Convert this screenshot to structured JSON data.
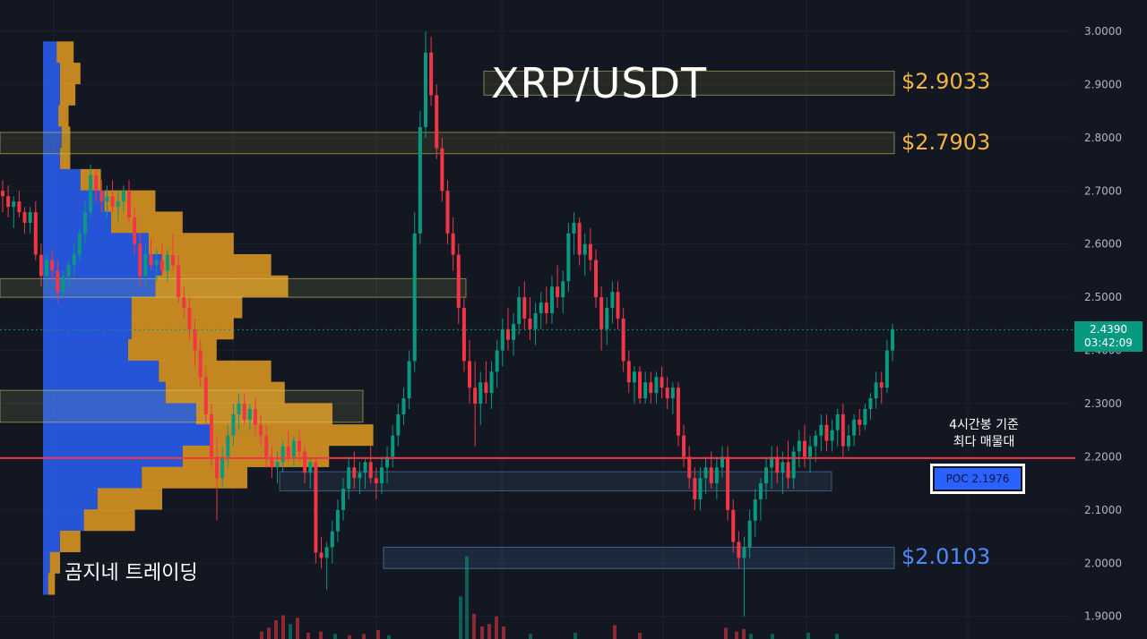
{
  "chart_data": {
    "type": "candlestick",
    "title": "XRP/USDT",
    "watermark": "곰지네 트레이딩",
    "y_axis": {
      "ticks": [
        "3.0000",
        "2.9000",
        "2.8000",
        "2.7000",
        "2.6000",
        "2.5000",
        "2.4000",
        "2.3000",
        "2.2000",
        "2.1000",
        "2.0000",
        "1.9000"
      ],
      "ylim": [
        1.86,
        3.04
      ],
      "side": "right"
    },
    "last_price": {
      "value": "2.4390",
      "countdown": "03:42:09"
    },
    "levels": [
      {
        "label": "$2.9033",
        "value": 2.9033,
        "zone": [
          2.88,
          2.925
        ],
        "color": "#f5b43c"
      },
      {
        "label": "$2.7903",
        "value": 2.7903,
        "zone": [
          2.77,
          2.81
        ],
        "color": "#f5b43c"
      },
      {
        "label": "$2.0103",
        "value": 2.0103,
        "zone": [
          1.99,
          2.03
        ],
        "color": "#4a8cff"
      }
    ],
    "other_zones": [
      {
        "range": [
          2.5,
          2.535
        ],
        "color": "#d7d26a"
      },
      {
        "range": [
          2.265,
          2.325
        ],
        "color": "#d7d26a"
      },
      {
        "range": [
          2.136,
          2.172
        ],
        "color": "#5a8fb5"
      }
    ],
    "poc": {
      "value": 2.1976,
      "label": "POC  2.1976",
      "note_line1": "4시간봉 기준",
      "note_line2": "최다 매물대",
      "line_color": "#f23645"
    },
    "candles_ohlc": [
      [
        2.7,
        2.72,
        2.66,
        2.69
      ],
      [
        2.69,
        2.71,
        2.65,
        2.67
      ],
      [
        2.67,
        2.69,
        2.63,
        2.68
      ],
      [
        2.68,
        2.7,
        2.65,
        2.66
      ],
      [
        2.66,
        2.67,
        2.62,
        2.64
      ],
      [
        2.64,
        2.67,
        2.62,
        2.66
      ],
      [
        2.66,
        2.68,
        2.57,
        2.58
      ],
      [
        2.58,
        2.6,
        2.52,
        2.54
      ],
      [
        2.54,
        2.58,
        2.52,
        2.57
      ],
      [
        2.57,
        2.59,
        2.53,
        2.55
      ],
      [
        2.55,
        2.57,
        2.49,
        2.51
      ],
      [
        2.51,
        2.55,
        2.5,
        2.54
      ],
      [
        2.54,
        2.57,
        2.52,
        2.56
      ],
      [
        2.56,
        2.6,
        2.54,
        2.58
      ],
      [
        2.58,
        2.63,
        2.57,
        2.62
      ],
      [
        2.62,
        2.68,
        2.6,
        2.66
      ],
      [
        2.66,
        2.75,
        2.65,
        2.73
      ],
      [
        2.73,
        2.74,
        2.68,
        2.7
      ],
      [
        2.7,
        2.72,
        2.66,
        2.68
      ],
      [
        2.68,
        2.71,
        2.65,
        2.69
      ],
      [
        2.69,
        2.72,
        2.66,
        2.67
      ],
      [
        2.67,
        2.7,
        2.64,
        2.68
      ],
      [
        2.68,
        2.71,
        2.66,
        2.7
      ],
      [
        2.7,
        2.72,
        2.64,
        2.65
      ],
      [
        2.65,
        2.67,
        2.58,
        2.6
      ],
      [
        2.6,
        2.62,
        2.52,
        2.54
      ],
      [
        2.54,
        2.6,
        2.52,
        2.58
      ],
      [
        2.58,
        2.61,
        2.55,
        2.56
      ],
      [
        2.56,
        2.59,
        2.53,
        2.57
      ],
      [
        2.57,
        2.6,
        2.54,
        2.55
      ],
      [
        2.55,
        2.59,
        2.53,
        2.58
      ],
      [
        2.58,
        2.62,
        2.55,
        2.56
      ],
      [
        2.56,
        2.58,
        2.49,
        2.5
      ],
      [
        2.5,
        2.52,
        2.46,
        2.48
      ],
      [
        2.48,
        2.5,
        2.42,
        2.44
      ],
      [
        2.44,
        2.46,
        2.37,
        2.4
      ],
      [
        2.4,
        2.42,
        2.33,
        2.35
      ],
      [
        2.35,
        2.37,
        2.26,
        2.28
      ],
      [
        2.28,
        2.3,
        2.18,
        2.2
      ],
      [
        2.2,
        2.24,
        2.08,
        2.16
      ],
      [
        2.16,
        2.22,
        2.14,
        2.2
      ],
      [
        2.2,
        2.26,
        2.18,
        2.24
      ],
      [
        2.24,
        2.3,
        2.22,
        2.28
      ],
      [
        2.28,
        2.32,
        2.25,
        2.3
      ],
      [
        2.3,
        2.32,
        2.26,
        2.27
      ],
      [
        2.27,
        2.3,
        2.25,
        2.29
      ],
      [
        2.29,
        2.31,
        2.24,
        2.26
      ],
      [
        2.26,
        2.28,
        2.22,
        2.24
      ],
      [
        2.24,
        2.26,
        2.18,
        2.2
      ],
      [
        2.2,
        2.22,
        2.16,
        2.18
      ],
      [
        2.18,
        2.21,
        2.15,
        2.19
      ],
      [
        2.19,
        2.23,
        2.17,
        2.22
      ],
      [
        2.22,
        2.25,
        2.19,
        2.2
      ],
      [
        2.2,
        2.24,
        2.18,
        2.23
      ],
      [
        2.23,
        2.25,
        2.19,
        2.21
      ],
      [
        2.21,
        2.22,
        2.15,
        2.17
      ],
      [
        2.17,
        2.2,
        2.14,
        2.19
      ],
      [
        2.19,
        2.2,
        2.0,
        2.02
      ],
      [
        2.02,
        2.05,
        1.99,
        2.01
      ],
      [
        2.01,
        2.04,
        1.95,
        2.03
      ],
      [
        2.03,
        2.08,
        2.0,
        2.06
      ],
      [
        2.06,
        2.12,
        2.04,
        2.1
      ],
      [
        2.1,
        2.16,
        2.08,
        2.14
      ],
      [
        2.14,
        2.2,
        2.12,
        2.18
      ],
      [
        2.18,
        2.21,
        2.14,
        2.16
      ],
      [
        2.16,
        2.19,
        2.13,
        2.17
      ],
      [
        2.17,
        2.2,
        2.14,
        2.19
      ],
      [
        2.19,
        2.22,
        2.15,
        2.16
      ],
      [
        2.16,
        2.18,
        2.12,
        2.15
      ],
      [
        2.15,
        2.2,
        2.13,
        2.18
      ],
      [
        2.18,
        2.22,
        2.15,
        2.2
      ],
      [
        2.2,
        2.26,
        2.18,
        2.24
      ],
      [
        2.24,
        2.3,
        2.22,
        2.28
      ],
      [
        2.28,
        2.33,
        2.26,
        2.31
      ],
      [
        2.31,
        2.4,
        2.29,
        2.38
      ],
      [
        2.38,
        2.66,
        2.36,
        2.62
      ],
      [
        2.62,
        2.85,
        2.6,
        2.82
      ],
      [
        2.82,
        3.0,
        2.8,
        2.96
      ],
      [
        2.96,
        2.99,
        2.86,
        2.88
      ],
      [
        2.88,
        2.9,
        2.76,
        2.78
      ],
      [
        2.78,
        2.8,
        2.68,
        2.7
      ],
      [
        2.7,
        2.72,
        2.6,
        2.62
      ],
      [
        2.62,
        2.65,
        2.55,
        2.58
      ],
      [
        2.58,
        2.6,
        2.45,
        2.48
      ],
      [
        2.48,
        2.5,
        2.36,
        2.38
      ],
      [
        2.38,
        2.42,
        2.3,
        2.33
      ],
      [
        2.33,
        2.38,
        2.22,
        2.3
      ],
      [
        2.3,
        2.36,
        2.26,
        2.34
      ],
      [
        2.34,
        2.38,
        2.3,
        2.32
      ],
      [
        2.32,
        2.38,
        2.29,
        2.36
      ],
      [
        2.36,
        2.42,
        2.33,
        2.4
      ],
      [
        2.4,
        2.46,
        2.37,
        2.44
      ],
      [
        2.44,
        2.48,
        2.4,
        2.42
      ],
      [
        2.42,
        2.47,
        2.39,
        2.45
      ],
      [
        2.45,
        2.52,
        2.43,
        2.5
      ],
      [
        2.5,
        2.53,
        2.44,
        2.46
      ],
      [
        2.46,
        2.5,
        2.42,
        2.44
      ],
      [
        2.44,
        2.49,
        2.41,
        2.47
      ],
      [
        2.47,
        2.51,
        2.44,
        2.49
      ],
      [
        2.49,
        2.52,
        2.45,
        2.47
      ],
      [
        2.47,
        2.54,
        2.45,
        2.52
      ],
      [
        2.52,
        2.56,
        2.48,
        2.5
      ],
      [
        2.5,
        2.55,
        2.47,
        2.53
      ],
      [
        2.53,
        2.64,
        2.51,
        2.62
      ],
      [
        2.62,
        2.66,
        2.58,
        2.64
      ],
      [
        2.64,
        2.65,
        2.56,
        2.58
      ],
      [
        2.58,
        2.62,
        2.54,
        2.6
      ],
      [
        2.6,
        2.63,
        2.55,
        2.57
      ],
      [
        2.57,
        2.59,
        2.48,
        2.5
      ],
      [
        2.5,
        2.52,
        2.4,
        2.44
      ],
      [
        2.44,
        2.5,
        2.41,
        2.48
      ],
      [
        2.48,
        2.53,
        2.45,
        2.51
      ],
      [
        2.51,
        2.53,
        2.44,
        2.46
      ],
      [
        2.46,
        2.48,
        2.36,
        2.38
      ],
      [
        2.38,
        2.4,
        2.32,
        2.34
      ],
      [
        2.34,
        2.37,
        2.3,
        2.36
      ],
      [
        2.36,
        2.37,
        2.3,
        2.31
      ],
      [
        2.31,
        2.36,
        2.3,
        2.34
      ],
      [
        2.34,
        2.36,
        2.3,
        2.32
      ],
      [
        2.32,
        2.36,
        2.3,
        2.35
      ],
      [
        2.35,
        2.37,
        2.31,
        2.33
      ],
      [
        2.33,
        2.35,
        2.29,
        2.31
      ],
      [
        2.31,
        2.34,
        2.28,
        2.33
      ],
      [
        2.33,
        2.34,
        2.22,
        2.24
      ],
      [
        2.24,
        2.26,
        2.18,
        2.2
      ],
      [
        2.2,
        2.22,
        2.14,
        2.16
      ],
      [
        2.16,
        2.18,
        2.1,
        2.12
      ],
      [
        2.12,
        2.18,
        2.1,
        2.16
      ],
      [
        2.16,
        2.2,
        2.13,
        2.18
      ],
      [
        2.18,
        2.21,
        2.14,
        2.15
      ],
      [
        2.15,
        2.2,
        2.12,
        2.18
      ],
      [
        2.18,
        2.22,
        2.16,
        2.2
      ],
      [
        2.2,
        2.22,
        2.08,
        2.1
      ],
      [
        2.1,
        2.12,
        2.02,
        2.04
      ],
      [
        2.04,
        2.06,
        1.99,
        2.01
      ],
      [
        2.01,
        2.05,
        1.9,
        2.03
      ],
      [
        2.03,
        2.1,
        2.01,
        2.08
      ],
      [
        2.08,
        2.14,
        2.05,
        2.12
      ],
      [
        2.12,
        2.16,
        2.08,
        2.15
      ],
      [
        2.15,
        2.2,
        2.12,
        2.18
      ],
      [
        2.18,
        2.22,
        2.14,
        2.2
      ],
      [
        2.2,
        2.22,
        2.15,
        2.17
      ],
      [
        2.17,
        2.21,
        2.13,
        2.19
      ],
      [
        2.19,
        2.23,
        2.14,
        2.16
      ],
      [
        2.16,
        2.22,
        2.14,
        2.21
      ],
      [
        2.21,
        2.25,
        2.18,
        2.23
      ],
      [
        2.23,
        2.26,
        2.18,
        2.2
      ],
      [
        2.2,
        2.24,
        2.17,
        2.22
      ],
      [
        2.22,
        2.25,
        2.19,
        2.24
      ],
      [
        2.24,
        2.28,
        2.21,
        2.26
      ],
      [
        2.26,
        2.28,
        2.21,
        2.23
      ],
      [
        2.23,
        2.27,
        2.21,
        2.25
      ],
      [
        2.25,
        2.29,
        2.22,
        2.28
      ],
      [
        2.28,
        2.3,
        2.2,
        2.22
      ],
      [
        2.22,
        2.26,
        2.21,
        2.24
      ],
      [
        2.24,
        2.28,
        2.22,
        2.27
      ],
      [
        2.27,
        2.29,
        2.24,
        2.26
      ],
      [
        2.26,
        2.3,
        2.25,
        2.29
      ],
      [
        2.29,
        2.32,
        2.27,
        2.31
      ],
      [
        2.31,
        2.36,
        2.29,
        2.34
      ],
      [
        2.34,
        2.36,
        2.3,
        2.33
      ],
      [
        2.33,
        2.42,
        2.32,
        2.4
      ],
      [
        2.4,
        2.45,
        2.38,
        2.44
      ]
    ],
    "volume_profile": [
      [
        2.96,
        0.08,
        0.1
      ],
      [
        2.92,
        0.1,
        0.12
      ],
      [
        2.88,
        0.1,
        0.09
      ],
      [
        2.84,
        0.09,
        0.06
      ],
      [
        2.8,
        0.11,
        0.05
      ],
      [
        2.76,
        0.1,
        0.06
      ],
      [
        2.72,
        0.22,
        0.12
      ],
      [
        2.68,
        0.36,
        0.3
      ],
      [
        2.64,
        0.4,
        0.42
      ],
      [
        2.6,
        0.62,
        0.5
      ],
      [
        2.56,
        0.7,
        0.64
      ],
      [
        2.52,
        0.66,
        0.78
      ],
      [
        2.48,
        0.52,
        0.65
      ],
      [
        2.44,
        0.52,
        0.6
      ],
      [
        2.4,
        0.5,
        0.52
      ],
      [
        2.36,
        0.68,
        0.66
      ],
      [
        2.32,
        0.72,
        0.7
      ],
      [
        2.28,
        0.9,
        0.8
      ],
      [
        2.24,
        0.98,
        0.96
      ],
      [
        2.2,
        0.82,
        0.86
      ],
      [
        2.16,
        0.58,
        0.62
      ],
      [
        2.12,
        0.32,
        0.38
      ],
      [
        2.08,
        0.24,
        0.3
      ],
      [
        2.04,
        0.1,
        0.12
      ],
      [
        2.0,
        0.04,
        0.06
      ],
      [
        1.96,
        0.03,
        0.04
      ]
    ],
    "volume_bars": [
      [
        290,
        0.6,
        "r"
      ],
      [
        298,
        0.9,
        "r"
      ],
      [
        306,
        1.5,
        "r"
      ],
      [
        314,
        1.9,
        "r"
      ],
      [
        322,
        1.2,
        "g"
      ],
      [
        330,
        1.7,
        "r"
      ],
      [
        342,
        0.5,
        "r"
      ],
      [
        356,
        0.6,
        "r"
      ],
      [
        372,
        0.4,
        "g"
      ],
      [
        388,
        0.3,
        "r"
      ],
      [
        404,
        0.4,
        "r"
      ],
      [
        420,
        0.7,
        "r"
      ],
      [
        432,
        0.3,
        "g"
      ],
      [
        512,
        3.4,
        "g"
      ],
      [
        519,
        6.6,
        "g"
      ],
      [
        527,
        2.0,
        "r"
      ],
      [
        536,
        1.0,
        "r"
      ],
      [
        544,
        1.2,
        "r"
      ],
      [
        552,
        1.8,
        "r"
      ],
      [
        560,
        1.0,
        "r"
      ],
      [
        590,
        0.4,
        "g"
      ],
      [
        640,
        0.5,
        "g"
      ],
      [
        684,
        1.1,
        "r"
      ],
      [
        712,
        0.5,
        "r"
      ],
      [
        808,
        0.9,
        "r"
      ],
      [
        820,
        0.6,
        "r"
      ],
      [
        828,
        0.8,
        "r"
      ],
      [
        836,
        0.4,
        "g"
      ],
      [
        860,
        0.4,
        "g"
      ],
      [
        900,
        0.5,
        "g"
      ],
      [
        932,
        0.4,
        "g"
      ]
    ]
  }
}
